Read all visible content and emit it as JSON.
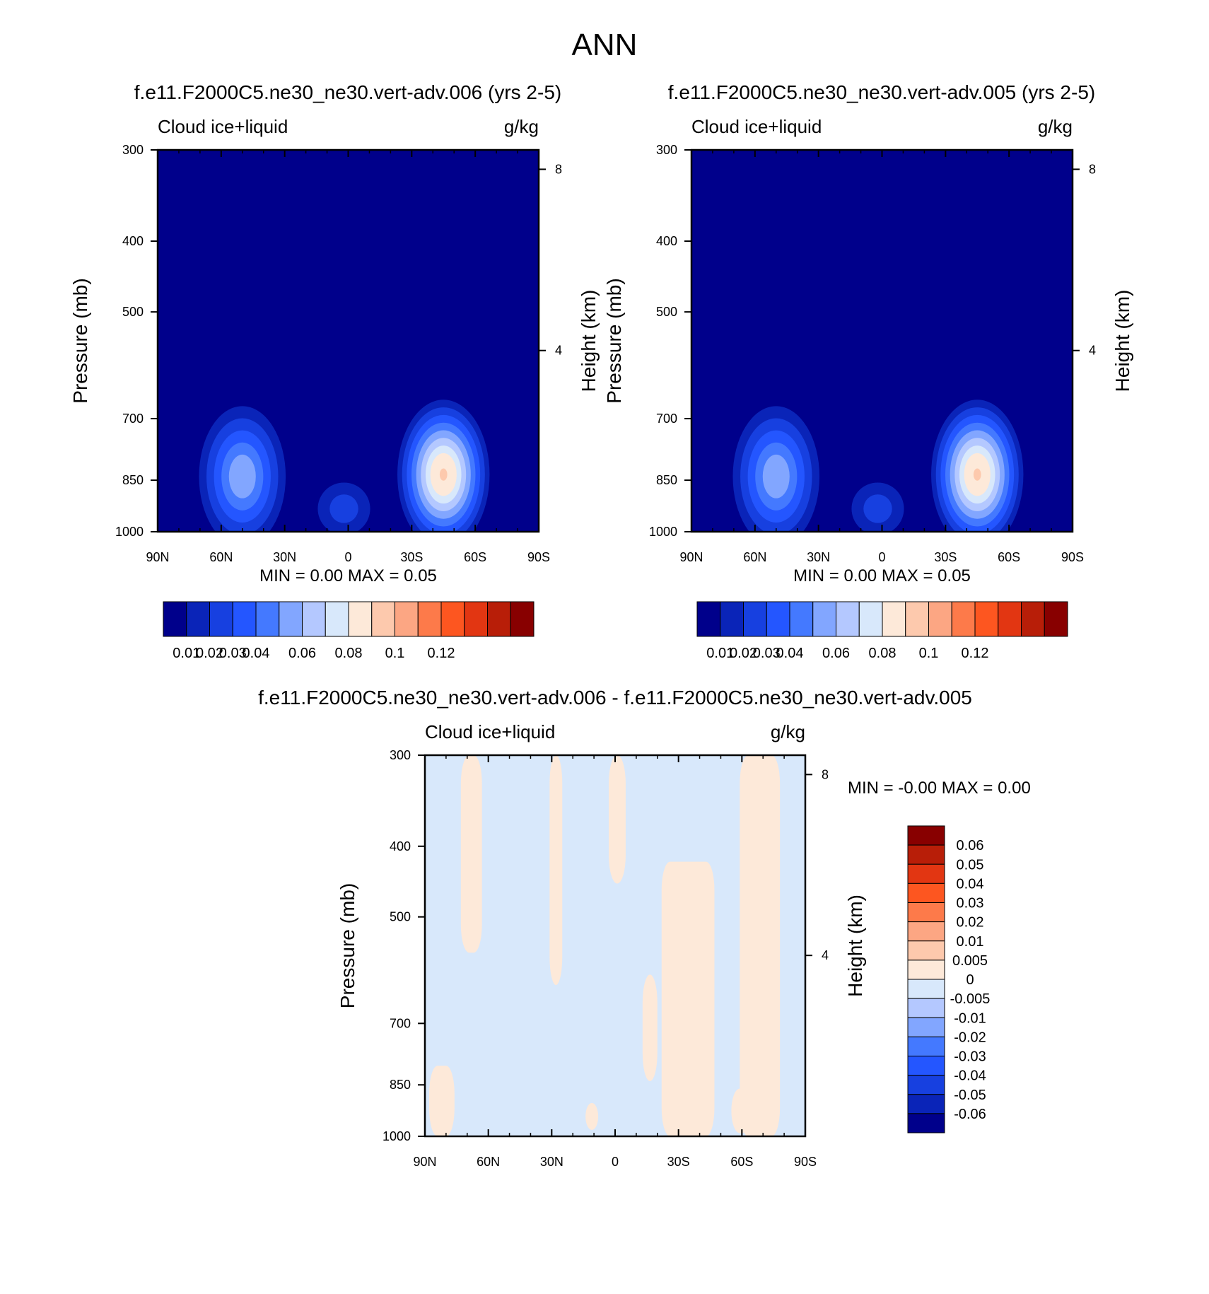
{
  "page_title": "ANN",
  "chart_data": [
    {
      "type": "heatmap",
      "title": "f.e11.F2000C5.ne30_ne30.vert-adv.006 (yrs 2-5)",
      "left_label": "Cloud ice+liquid",
      "right_label": "g/kg",
      "xlabel": "",
      "ylabel": "Pressure (mb)",
      "ylabel_right": "Height (km)",
      "x_ticks": [
        "90N",
        "60N",
        "30N",
        "0",
        "30S",
        "60S",
        "90S"
      ],
      "y_ticks": [
        "300",
        "400",
        "500",
        "700",
        "850",
        "1000"
      ],
      "y_right_ticks": [
        "8",
        "4"
      ],
      "xlim": [
        90,
        -90
      ],
      "ylim": [
        1000,
        300
      ],
      "y_scale": "log",
      "grid": false,
      "stats": {
        "min_label": "MIN =",
        "min": "0.00",
        "max_label": "MAX =",
        "max": "0.05"
      },
      "colorbar": {
        "orientation": "horizontal",
        "labels": [
          "0.01",
          "0.02",
          "0.03",
          "0.04",
          "0.06",
          "0.08",
          "0.1",
          "0.12"
        ],
        "colors": [
          "#00008b",
          "#0a24b8",
          "#1740e0",
          "#2456ff",
          "#4479ff",
          "#82a6ff",
          "#b4c8ff",
          "#d8e8fb",
          "#fde9d9",
          "#fdc9ad",
          "#fca683",
          "#fd7a4a",
          "#fd5620",
          "#e23612",
          "#b81e08",
          "#880000"
        ]
      },
      "fields": [
        {
          "lat": 50,
          "p": 840,
          "value": 0.03
        },
        {
          "lat": -45,
          "p": 835,
          "value": 0.05
        },
        {
          "lat": 2,
          "p": 930,
          "value": 0.012
        }
      ]
    },
    {
      "type": "heatmap",
      "title": "f.e11.F2000C5.ne30_ne30.vert-adv.005 (yrs 2-5)",
      "left_label": "Cloud ice+liquid",
      "right_label": "g/kg",
      "xlabel": "",
      "ylabel": "Pressure (mb)",
      "ylabel_right": "Height (km)",
      "x_ticks": [
        "90N",
        "60N",
        "30N",
        "0",
        "30S",
        "60S",
        "90S"
      ],
      "y_ticks": [
        "300",
        "400",
        "500",
        "700",
        "850",
        "1000"
      ],
      "y_right_ticks": [
        "8",
        "4"
      ],
      "xlim": [
        90,
        -90
      ],
      "ylim": [
        1000,
        300
      ],
      "y_scale": "log",
      "grid": false,
      "stats": {
        "min_label": "MIN =",
        "min": "0.00",
        "max_label": "MAX =",
        "max": "0.05"
      },
      "colorbar": {
        "orientation": "horizontal",
        "labels": [
          "0.01",
          "0.02",
          "0.03",
          "0.04",
          "0.06",
          "0.08",
          "0.1",
          "0.12"
        ],
        "colors": [
          "#00008b",
          "#0a24b8",
          "#1740e0",
          "#2456ff",
          "#4479ff",
          "#82a6ff",
          "#b4c8ff",
          "#d8e8fb",
          "#fde9d9",
          "#fdc9ad",
          "#fca683",
          "#fd7a4a",
          "#fd5620",
          "#e23612",
          "#b81e08",
          "#880000"
        ]
      },
      "fields": [
        {
          "lat": 50,
          "p": 840,
          "value": 0.03
        },
        {
          "lat": -45,
          "p": 835,
          "value": 0.05
        },
        {
          "lat": 2,
          "p": 930,
          "value": 0.012
        }
      ]
    },
    {
      "type": "heatmap",
      "title": "f.e11.F2000C5.ne30_ne30.vert-adv.006 - f.e11.F2000C5.ne30_ne30.vert-adv.005",
      "left_label": "Cloud ice+liquid",
      "right_label": "g/kg",
      "xlabel": "",
      "ylabel": "Pressure (mb)",
      "ylabel_right": "Height (km)",
      "x_ticks": [
        "90N",
        "60N",
        "30N",
        "0",
        "30S",
        "60S",
        "90S"
      ],
      "y_ticks": [
        "300",
        "400",
        "500",
        "700",
        "850",
        "1000"
      ],
      "y_right_ticks": [
        "8",
        "4"
      ],
      "xlim": [
        90,
        -90
      ],
      "ylim": [
        1000,
        300
      ],
      "y_scale": "log",
      "grid": false,
      "stats": {
        "min_label": "MIN =",
        "min": "-0.00",
        "max_label": "MAX =",
        "max": "0.00"
      },
      "colorbar": {
        "orientation": "vertical",
        "labels": [
          "0.06",
          "0.05",
          "0.04",
          "0.03",
          "0.02",
          "0.01",
          "0.005",
          "0",
          "-0.005",
          "-0.01",
          "-0.02",
          "-0.03",
          "-0.04",
          "-0.05",
          "-0.06"
        ],
        "colors": [
          "#880000",
          "#b81e08",
          "#e23612",
          "#fd5620",
          "#fd7a4a",
          "#fca683",
          "#fdc9ad",
          "#fde9d9",
          "#d8e8fb",
          "#b4c8ff",
          "#82a6ff",
          "#4479ff",
          "#2456ff",
          "#1740e0",
          "#0a24b8",
          "#00008b"
        ]
      },
      "positive_bands": [
        {
          "lat_min": 63,
          "lat_max": 73,
          "p_min": 300,
          "p_max": 560,
          "value": 0.003
        },
        {
          "lat_min": 25,
          "lat_max": 31,
          "p_min": 300,
          "p_max": 620,
          "value": 0.003
        },
        {
          "lat_min": -5,
          "lat_max": 3,
          "p_min": 300,
          "p_max": 450,
          "value": 0.003
        },
        {
          "lat_min": -47,
          "lat_max": -22,
          "p_min": 420,
          "p_max": 1000,
          "value": 0.003
        },
        {
          "lat_min": -78,
          "lat_max": -59,
          "p_min": 300,
          "p_max": 1000,
          "value": 0.003
        },
        {
          "lat_min": 76,
          "lat_max": 88,
          "p_min": 800,
          "p_max": 1000,
          "value": 0.003
        },
        {
          "lat_min": -20,
          "lat_max": -13,
          "p_min": 600,
          "p_max": 840,
          "value": 0.003
        },
        {
          "lat_min": 8,
          "lat_max": 14,
          "p_min": 900,
          "p_max": 980,
          "value": 0.003
        },
        {
          "lat_min": -64,
          "lat_max": -55,
          "p_min": 860,
          "p_max": 990,
          "value": 0.003
        }
      ]
    }
  ]
}
